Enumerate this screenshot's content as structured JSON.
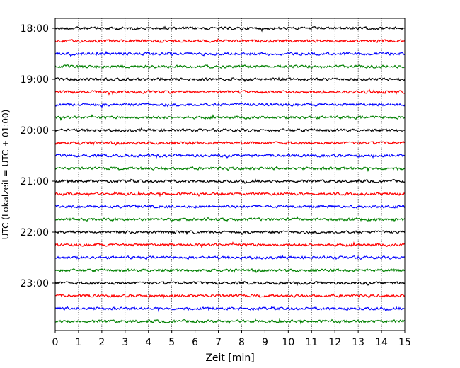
{
  "chart_data": {
    "type": "line",
    "title": "",
    "xlabel": "Zeit  [min]",
    "ylabel": "UTC (Lokalzeit = UTC + 01:00)",
    "xlim": [
      0,
      15
    ],
    "x_ticks": [
      0,
      1,
      2,
      3,
      4,
      5,
      6,
      7,
      8,
      9,
      10,
      11,
      12,
      13,
      14,
      15
    ],
    "x_tick_labels": [
      "0",
      "1",
      "2",
      "3",
      "4",
      "5",
      "6",
      "7",
      "8",
      "9",
      "10",
      "11",
      "12",
      "13",
      "14",
      "15"
    ],
    "y_tick_labels": [
      "18:00",
      "19:00",
      "20:00",
      "21:00",
      "22:00",
      "23:00"
    ],
    "start_time": "18:00",
    "trace_interval_min": 15,
    "trace_count": 24,
    "trace_colors": [
      "#000000",
      "#ff0000",
      "#0000ff",
      "#008000"
    ],
    "vertical_grid": true,
    "grid_style": "dotted"
  }
}
